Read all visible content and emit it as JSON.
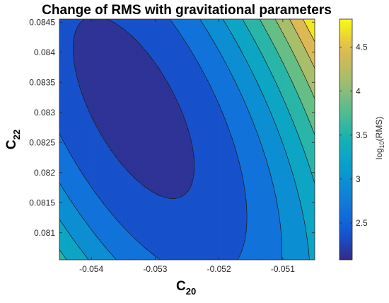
{
  "chart_data": {
    "type": "heatmap",
    "subtype": "filled-contour",
    "title": "Change of RMS with gravitational parameters",
    "xlabel": {
      "main": "C",
      "sub": "20"
    },
    "ylabel": {
      "main": "C",
      "sub": "22"
    },
    "colorbar_label": {
      "prefix": "log",
      "sub": "10",
      "suffix": "(RMS)"
    },
    "xlim": [
      -0.0545,
      -0.0505
    ],
    "ylim": [
      0.08055,
      0.08455
    ],
    "clim": [
      2.08,
      4.82
    ],
    "x_ticks": [
      {
        "value": -0.054,
        "label": "-0.054"
      },
      {
        "value": -0.053,
        "label": "-0.053"
      },
      {
        "value": -0.052,
        "label": "-0.052"
      },
      {
        "value": -0.051,
        "label": "-0.051"
      }
    ],
    "y_ticks": [
      {
        "value": 0.081,
        "label": "0.081"
      },
      {
        "value": 0.0815,
        "label": "0.0815"
      },
      {
        "value": 0.082,
        "label": "0.082"
      },
      {
        "value": 0.0825,
        "label": "0.0825"
      },
      {
        "value": 0.083,
        "label": "0.083"
      },
      {
        "value": 0.0835,
        "label": "0.0835"
      },
      {
        "value": 0.084,
        "label": "0.084"
      },
      {
        "value": 0.0845,
        "label": "0.0845"
      }
    ],
    "colorbar_ticks": [
      {
        "value": 2.5,
        "label": "2.5"
      },
      {
        "value": 3,
        "label": "3"
      },
      {
        "value": 3.5,
        "label": "3.5"
      },
      {
        "value": 4,
        "label": "4"
      },
      {
        "value": 4.5,
        "label": "4.5"
      }
    ],
    "levels": [
      2.2,
      2.5,
      2.8,
      3.1,
      3.4,
      3.7,
      4.0,
      4.3,
      4.6
    ],
    "minimum": {
      "x": -0.0533,
      "y": 0.0831,
      "value": 2.08
    },
    "colormap": "parula",
    "grid": false,
    "colorbar_position": "right"
  }
}
